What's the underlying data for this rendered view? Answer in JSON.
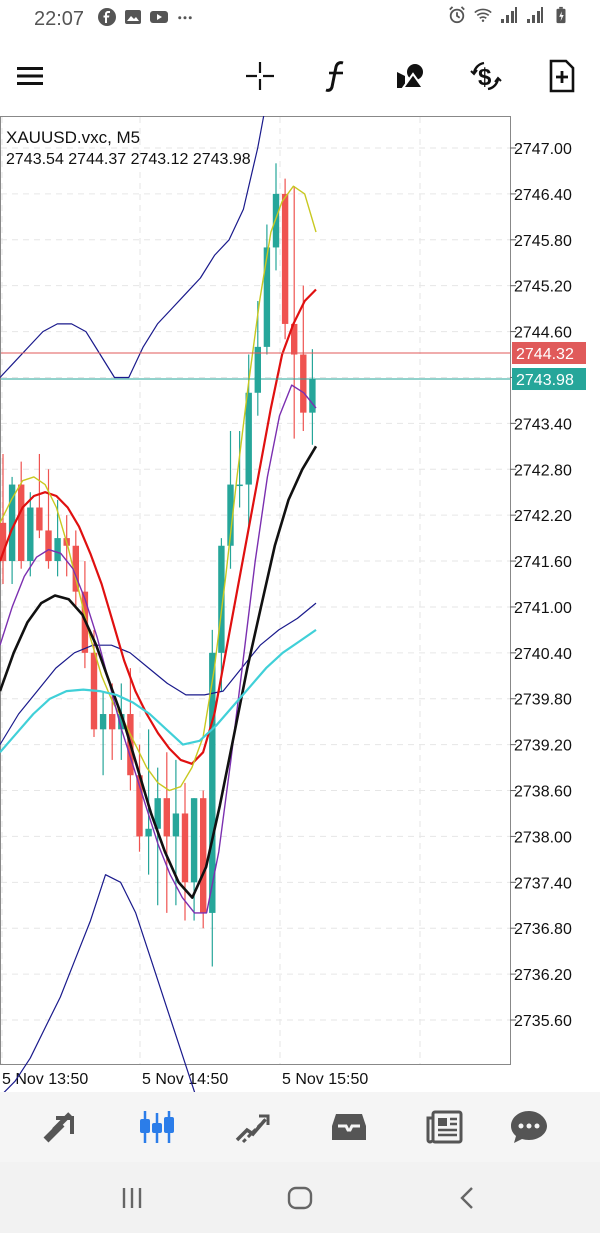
{
  "status_bar": {
    "time": "22:07",
    "left_icons": [
      "facebook-icon",
      "gallery-icon",
      "youtube-icon",
      "more-dots-icon"
    ],
    "right_icons": [
      "alarm-icon",
      "wifi-icon",
      "signal-icon",
      "signal-icon",
      "battery-icon"
    ]
  },
  "toolbar": {
    "items": [
      "menu-icon",
      "crosshair-icon",
      "function-icon",
      "objects-icon",
      "trade-icon",
      "new-order-icon"
    ]
  },
  "chart": {
    "symbol": "XAUUSD.vxc, M5",
    "ohlc": "2743.54 2744.37 2743.12 2743.98",
    "price_ticks": [
      "2747.00",
      "2746.40",
      "2745.80",
      "2745.20",
      "2744.60",
      "2744.00",
      "2743.40",
      "2742.80",
      "2742.20",
      "2741.60",
      "2741.00",
      "2740.40",
      "2739.80",
      "2739.20",
      "2738.60",
      "2738.00",
      "2737.40",
      "2736.80",
      "2736.20",
      "2735.60"
    ],
    "time_ticks": [
      "5 Nov 13:50",
      "5 Nov 14:50",
      "5 Nov 15:50"
    ],
    "price_tags": [
      {
        "value": "2744.32",
        "color": "#e05a5a"
      },
      {
        "value": "2743.98",
        "color": "#26a69a"
      }
    ],
    "colors": {
      "bull": "#26a69a",
      "bear": "#ef5350",
      "ma_red": "#e01010",
      "ma_black": "#111111",
      "ma_yellow": "#c8c820",
      "ma_purple": "#7b2fb0",
      "ma_cyan": "#40d0d8",
      "bands": "#1a1a8c"
    }
  },
  "chart_data": {
    "type": "candlestick",
    "title": "XAUUSD.vxc, M5",
    "ylim": [
      2734.8,
      2747.4
    ],
    "candles": [
      {
        "o": 2742.1,
        "h": 2743.0,
        "l": 2741.3,
        "c": 2741.6
      },
      {
        "o": 2741.6,
        "h": 2742.7,
        "l": 2741.3,
        "c": 2742.6
      },
      {
        "o": 2742.6,
        "h": 2742.9,
        "l": 2741.5,
        "c": 2741.6
      },
      {
        "o": 2741.6,
        "h": 2742.5,
        "l": 2741.4,
        "c": 2742.3
      },
      {
        "o": 2742.3,
        "h": 2743.0,
        "l": 2741.9,
        "c": 2742.0
      },
      {
        "o": 2742.0,
        "h": 2742.8,
        "l": 2741.5,
        "c": 2741.6
      },
      {
        "o": 2741.6,
        "h": 2742.4,
        "l": 2741.4,
        "c": 2741.9
      },
      {
        "o": 2741.9,
        "h": 2742.2,
        "l": 2741.4,
        "c": 2741.8
      },
      {
        "o": 2741.8,
        "h": 2742.0,
        "l": 2741.0,
        "c": 2741.2
      },
      {
        "o": 2741.2,
        "h": 2741.6,
        "l": 2740.2,
        "c": 2740.4
      },
      {
        "o": 2740.4,
        "h": 2740.7,
        "l": 2739.3,
        "c": 2739.4
      },
      {
        "o": 2739.4,
        "h": 2739.9,
        "l": 2738.8,
        "c": 2739.6
      },
      {
        "o": 2739.6,
        "h": 2740.0,
        "l": 2739.0,
        "c": 2739.4
      },
      {
        "o": 2739.4,
        "h": 2740.0,
        "l": 2739.0,
        "c": 2739.6
      },
      {
        "o": 2739.6,
        "h": 2740.2,
        "l": 2738.6,
        "c": 2738.8
      },
      {
        "o": 2738.8,
        "h": 2739.2,
        "l": 2737.8,
        "c": 2738.0
      },
      {
        "o": 2738.0,
        "h": 2739.4,
        "l": 2737.5,
        "c": 2738.1
      },
      {
        "o": 2738.1,
        "h": 2738.9,
        "l": 2737.1,
        "c": 2738.5
      },
      {
        "o": 2738.5,
        "h": 2739.1,
        "l": 2737.0,
        "c": 2738.0
      },
      {
        "o": 2738.0,
        "h": 2739.0,
        "l": 2737.1,
        "c": 2738.3
      },
      {
        "o": 2738.3,
        "h": 2738.7,
        "l": 2736.9,
        "c": 2737.4
      },
      {
        "o": 2737.4,
        "h": 2738.5,
        "l": 2736.9,
        "c": 2738.5
      },
      {
        "o": 2738.5,
        "h": 2738.6,
        "l": 2736.8,
        "c": 2737.0
      },
      {
        "o": 2737.0,
        "h": 2740.7,
        "l": 2736.3,
        "c": 2740.4
      },
      {
        "o": 2740.4,
        "h": 2741.9,
        "l": 2739.9,
        "c": 2741.8
      },
      {
        "o": 2741.8,
        "h": 2743.3,
        "l": 2741.5,
        "c": 2742.6
      },
      {
        "o": 2742.6,
        "h": 2743.3,
        "l": 2742.3,
        "c": 2742.6
      },
      {
        "o": 2742.6,
        "h": 2744.3,
        "l": 2742.0,
        "c": 2743.8
      },
      {
        "o": 2743.8,
        "h": 2745.0,
        "l": 2743.5,
        "c": 2744.4
      },
      {
        "o": 2744.4,
        "h": 2746.0,
        "l": 2744.3,
        "c": 2745.7
      },
      {
        "o": 2745.7,
        "h": 2746.8,
        "l": 2745.4,
        "c": 2746.4
      },
      {
        "o": 2746.4,
        "h": 2746.6,
        "l": 2744.5,
        "c": 2744.7
      },
      {
        "o": 2744.7,
        "h": 2746.5,
        "l": 2743.2,
        "c": 2744.3
      },
      {
        "o": 2744.3,
        "h": 2745.2,
        "l": 2743.3,
        "c": 2743.54
      },
      {
        "o": 2743.54,
        "h": 2744.37,
        "l": 2743.12,
        "c": 2743.98
      }
    ],
    "lines": [
      {
        "name": "",
        "color": "ma_red",
        "values": [
          2741.6,
          2742.0,
          2742.3,
          2742.45,
          2742.5,
          2742.45,
          2742.3,
          2742.05,
          2741.7,
          2741.3,
          2740.8,
          2740.3,
          2739.9,
          2739.6,
          2739.35,
          2739.15,
          2739.0,
          2738.95,
          2739.1,
          2739.6,
          2740.4,
          2741.2,
          2742.0,
          2742.8,
          2743.6,
          2744.3,
          2744.7,
          2745.0,
          2745.15
        ]
      },
      {
        "name": "",
        "color": "ma_yellow",
        "values": [
          2742.1,
          2742.4,
          2742.65,
          2742.7,
          2742.6,
          2742.3,
          2741.8,
          2741.2,
          2740.6,
          2740.1,
          2739.75,
          2739.5,
          2739.2,
          2738.9,
          2738.7,
          2738.6,
          2738.65,
          2738.9,
          2739.3,
          2740.2,
          2741.4,
          2742.7,
          2743.9,
          2745.0,
          2745.9,
          2746.3,
          2746.5,
          2746.4,
          2745.9
        ]
      },
      {
        "name": "",
        "color": "ma_purple",
        "values": [
          2740.5,
          2741.0,
          2741.4,
          2741.65,
          2741.75,
          2741.7,
          2741.5,
          2741.1,
          2740.6,
          2740.0,
          2739.4,
          2738.9,
          2738.4,
          2737.9,
          2737.5,
          2737.2,
          2737.0,
          2737.0,
          2737.8,
          2739.0,
          2740.3,
          2741.6,
          2742.7,
          2743.5,
          2743.9,
          2743.8,
          2743.6
        ]
      },
      {
        "name": "",
        "color": "ma_black",
        "values": [
          2739.9,
          2740.4,
          2740.8,
          2741.05,
          2741.15,
          2741.1,
          2740.9,
          2740.5,
          2740.0,
          2739.5,
          2738.9,
          2738.3,
          2737.8,
          2737.4,
          2737.2,
          2737.6,
          2738.4,
          2739.3,
          2740.2,
          2741.0,
          2741.8,
          2742.4,
          2742.8,
          2743.1
        ]
      },
      {
        "name": "",
        "color": "ma_cyan",
        "values": [
          2739.1,
          2739.35,
          2739.6,
          2739.8,
          2739.9,
          2739.92,
          2739.9,
          2739.85,
          2739.75,
          2739.6,
          2739.4,
          2739.2,
          2739.25,
          2739.45,
          2739.7,
          2739.95,
          2740.2,
          2740.4,
          2740.55,
          2740.7
        ]
      }
    ],
    "bands": [
      {
        "values": [
          2744.0,
          2744.2,
          2744.4,
          2744.6,
          2744.7,
          2744.7,
          2744.6,
          2744.3,
          2744.0,
          2744.0,
          2744.4,
          2744.7,
          2744.9,
          2745.1,
          2745.3,
          2745.6,
          2745.8,
          2746.2,
          2747.0,
          2748.0
        ]
      },
      {
        "values": [
          2739.2,
          2739.6,
          2739.9,
          2740.2,
          2740.4,
          2740.5,
          2740.5,
          2740.4,
          2740.2,
          2740.0,
          2739.85,
          2739.85,
          2739.9,
          2740.2,
          2740.5,
          2740.7,
          2740.85,
          2741.05
        ]
      },
      {
        "values": [
          2734.6,
          2734.8,
          2735.1,
          2735.5,
          2735.9,
          2736.4,
          2736.9,
          2737.5,
          2737.4,
          2737.0,
          2736.4,
          2735.8,
          2735.2,
          2734.6
        ]
      }
    ],
    "hlines": [
      2744.32,
      2743.98
    ],
    "yticks": [
      2747.0,
      2746.4,
      2745.8,
      2745.2,
      2744.6,
      2744.0,
      2743.4,
      2742.8,
      2742.2,
      2741.6,
      2741.0,
      2740.4,
      2739.8,
      2739.2,
      2738.6,
      2738.0,
      2737.4,
      2736.8,
      2736.2,
      2735.6
    ],
    "xticks": [
      "5 Nov 13:50",
      "5 Nov 14:50",
      "5 Nov 15:50"
    ]
  },
  "bottom_nav": {
    "items": [
      "quotes-icon",
      "chart-icon",
      "trade-icon",
      "history-icon",
      "news-icon",
      "messages-icon"
    ],
    "active": "chart-icon"
  },
  "system_nav": {
    "items": [
      "recents-icon",
      "home-icon",
      "back-icon"
    ]
  }
}
